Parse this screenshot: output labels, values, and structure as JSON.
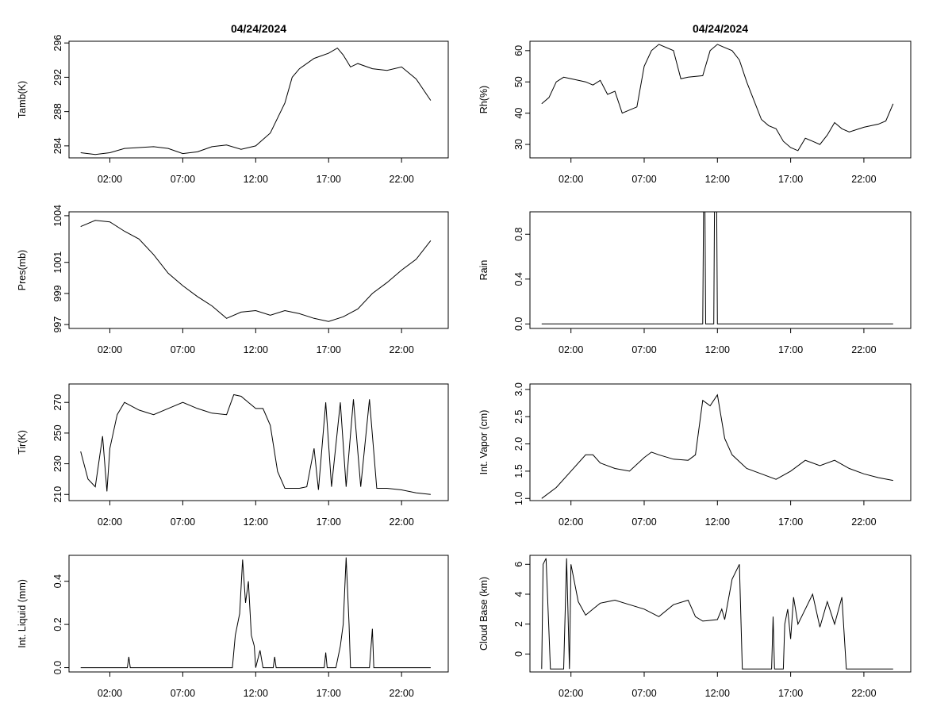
{
  "chart_data": [
    {
      "type": "line",
      "panel": "tamb",
      "title": "04/24/2024",
      "ylabel": "Tamb(K)",
      "ylim": [
        282.6,
        296.2
      ],
      "yticks": [
        "284",
        "288",
        "292",
        "296"
      ],
      "xticks": [
        "02:00",
        "07:00",
        "12:00",
        "17:00",
        "22:00"
      ],
      "xlim": [
        -0.8,
        25.2
      ],
      "points": [
        [
          0.0,
          283.2
        ],
        [
          1.0,
          283.0
        ],
        [
          2.0,
          283.2
        ],
        [
          3.0,
          283.7
        ],
        [
          4.0,
          283.8
        ],
        [
          5.0,
          283.9
        ],
        [
          6.0,
          283.7
        ],
        [
          7.0,
          283.1
        ],
        [
          8.0,
          283.3
        ],
        [
          9.0,
          283.9
        ],
        [
          10.0,
          284.1
        ],
        [
          11.0,
          283.6
        ],
        [
          12.0,
          284.0
        ],
        [
          13.0,
          285.5
        ],
        [
          14.0,
          289.0
        ],
        [
          14.5,
          292.0
        ],
        [
          15.0,
          293.0
        ],
        [
          16.0,
          294.2
        ],
        [
          17.0,
          294.8
        ],
        [
          17.6,
          295.4
        ],
        [
          18.0,
          294.6
        ],
        [
          18.5,
          293.2
        ],
        [
          19.0,
          293.6
        ],
        [
          20.0,
          293.0
        ],
        [
          21.0,
          292.8
        ],
        [
          22.0,
          293.2
        ],
        [
          23.0,
          291.8
        ],
        [
          24.0,
          289.3
        ]
      ]
    },
    {
      "type": "line",
      "panel": "rh",
      "title": "04/24/2024",
      "ylabel": "Rh(%)",
      "ylim": [
        25.7,
        63.0
      ],
      "yticks": [
        "30",
        "40",
        "50",
        "60"
      ],
      "xticks": [
        "02:00",
        "07:00",
        "12:00",
        "17:00",
        "22:00"
      ],
      "xlim": [
        -0.8,
        25.2
      ],
      "points": [
        [
          0.0,
          43.0
        ],
        [
          0.5,
          45.0
        ],
        [
          1.0,
          50.0
        ],
        [
          1.5,
          51.5
        ],
        [
          2.0,
          51.0
        ],
        [
          3.0,
          50.0
        ],
        [
          3.5,
          49.0
        ],
        [
          4.0,
          50.5
        ],
        [
          4.5,
          46.0
        ],
        [
          5.0,
          47.0
        ],
        [
          5.5,
          40.0
        ],
        [
          6.0,
          41.0
        ],
        [
          6.5,
          42.0
        ],
        [
          7.0,
          55.0
        ],
        [
          7.5,
          60.0
        ],
        [
          8.0,
          62.0
        ],
        [
          9.0,
          60.0
        ],
        [
          9.5,
          51.0
        ],
        [
          10.0,
          51.5
        ],
        [
          11.0,
          52.0
        ],
        [
          11.5,
          60.0
        ],
        [
          12.0,
          62.0
        ],
        [
          12.5,
          61.0
        ],
        [
          13.0,
          60.0
        ],
        [
          13.5,
          57.0
        ],
        [
          14.0,
          50.0
        ],
        [
          14.5,
          44.0
        ],
        [
          15.0,
          38.0
        ],
        [
          15.5,
          36.0
        ],
        [
          16.0,
          35.0
        ],
        [
          16.5,
          31.0
        ],
        [
          17.0,
          29.0
        ],
        [
          17.5,
          28.0
        ],
        [
          18.0,
          32.0
        ],
        [
          18.5,
          31.0
        ],
        [
          19.0,
          30.0
        ],
        [
          19.5,
          33.0
        ],
        [
          20.0,
          37.0
        ],
        [
          20.5,
          35.0
        ],
        [
          21.0,
          34.0
        ],
        [
          22.0,
          35.5
        ],
        [
          22.5,
          36.0
        ],
        [
          23.0,
          36.5
        ],
        [
          23.5,
          37.5
        ],
        [
          24.0,
          43.0
        ]
      ]
    },
    {
      "type": "line",
      "panel": "pres",
      "ylabel": "Pres(mb)",
      "ylim": [
        996.75,
        1004.25
      ],
      "yticks": [
        "997",
        "999",
        "1001",
        "1004"
      ],
      "xticks": [
        "02:00",
        "07:00",
        "12:00",
        "17:00",
        "22:00"
      ],
      "xlim": [
        -0.8,
        25.2
      ],
      "points": [
        [
          0.0,
          1003.3
        ],
        [
          1.0,
          1003.7
        ],
        [
          2.0,
          1003.6
        ],
        [
          3.0,
          1003.0
        ],
        [
          4.0,
          1002.5
        ],
        [
          5.0,
          1001.5
        ],
        [
          6.0,
          1000.3
        ],
        [
          7.0,
          999.5
        ],
        [
          8.0,
          998.8
        ],
        [
          9.0,
          998.2
        ],
        [
          10.0,
          997.4
        ],
        [
          11.0,
          997.8
        ],
        [
          12.0,
          997.9
        ],
        [
          13.0,
          997.6
        ],
        [
          14.0,
          997.9
        ],
        [
          15.0,
          997.7
        ],
        [
          16.0,
          997.4
        ],
        [
          17.0,
          997.2
        ],
        [
          18.0,
          997.5
        ],
        [
          19.0,
          998.0
        ],
        [
          20.0,
          999.0
        ],
        [
          21.0,
          999.7
        ],
        [
          22.0,
          1000.5
        ],
        [
          23.0,
          1001.2
        ],
        [
          24.0,
          1002.4
        ]
      ]
    },
    {
      "type": "line",
      "panel": "rain",
      "ylabel": "Rain",
      "ylim": [
        -0.04,
        1.0
      ],
      "yticks": [
        "0.0",
        "0.4",
        "0.8"
      ],
      "xticks": [
        "02:00",
        "07:00",
        "12:00",
        "17:00",
        "22:00"
      ],
      "xlim": [
        -0.8,
        25.2
      ],
      "points": [
        [
          0.0,
          0.0
        ],
        [
          11.0,
          0.0
        ],
        [
          11.05,
          1.0
        ],
        [
          11.15,
          1.0
        ],
        [
          11.2,
          0.0
        ],
        [
          11.75,
          0.0
        ],
        [
          11.8,
          1.0
        ],
        [
          11.95,
          1.0
        ],
        [
          12.0,
          0.0
        ],
        [
          24.0,
          0.0
        ]
      ]
    },
    {
      "type": "line",
      "panel": "tir",
      "ylabel": "Tir(K)",
      "ylim": [
        206.0,
        282.0
      ],
      "yticks": [
        "210",
        "230",
        "250",
        "270"
      ],
      "xticks": [
        "02:00",
        "07:00",
        "12:00",
        "17:00",
        "22:00"
      ],
      "xlim": [
        -0.8,
        25.2
      ],
      "points": [
        [
          0.0,
          238.0
        ],
        [
          0.5,
          220.0
        ],
        [
          1.0,
          215.0
        ],
        [
          1.5,
          248.0
        ],
        [
          1.8,
          212.0
        ],
        [
          2.0,
          240.0
        ],
        [
          2.5,
          262.0
        ],
        [
          3.0,
          270.0
        ],
        [
          4.0,
          265.0
        ],
        [
          5.0,
          262.0
        ],
        [
          6.0,
          266.0
        ],
        [
          7.0,
          270.0
        ],
        [
          8.0,
          266.0
        ],
        [
          9.0,
          263.0
        ],
        [
          10.0,
          262.0
        ],
        [
          10.5,
          275.0
        ],
        [
          11.0,
          274.0
        ],
        [
          11.5,
          270.0
        ],
        [
          12.0,
          266.0
        ],
        [
          12.5,
          266.0
        ],
        [
          13.0,
          255.0
        ],
        [
          13.5,
          225.0
        ],
        [
          14.0,
          214.0
        ],
        [
          15.0,
          214.0
        ],
        [
          15.5,
          215.0
        ],
        [
          16.0,
          240.0
        ],
        [
          16.3,
          213.0
        ],
        [
          16.8,
          270.0
        ],
        [
          17.2,
          215.0
        ],
        [
          17.8,
          270.0
        ],
        [
          18.2,
          215.0
        ],
        [
          18.7,
          272.0
        ],
        [
          19.2,
          215.0
        ],
        [
          19.8,
          272.0
        ],
        [
          20.3,
          214.0
        ],
        [
          21.0,
          214.0
        ],
        [
          22.0,
          213.0
        ],
        [
          23.0,
          211.0
        ],
        [
          24.0,
          210.0
        ]
      ]
    },
    {
      "type": "line",
      "panel": "vapor",
      "ylabel": "Int. Vapor (cm)",
      "ylim": [
        0.96,
        3.1
      ],
      "yticks": [
        "1.0",
        "1.5",
        "2.0",
        "2.5",
        "3.0"
      ],
      "xticks": [
        "02:00",
        "07:00",
        "12:00",
        "17:00",
        "22:00"
      ],
      "xlim": [
        -0.8,
        25.2
      ],
      "points": [
        [
          0.0,
          1.0
        ],
        [
          1.0,
          1.2
        ],
        [
          2.0,
          1.5
        ],
        [
          3.0,
          1.8
        ],
        [
          3.5,
          1.8
        ],
        [
          4.0,
          1.65
        ],
        [
          5.0,
          1.55
        ],
        [
          6.0,
          1.5
        ],
        [
          7.0,
          1.75
        ],
        [
          7.5,
          1.85
        ],
        [
          8.0,
          1.8
        ],
        [
          9.0,
          1.72
        ],
        [
          10.0,
          1.7
        ],
        [
          10.5,
          1.8
        ],
        [
          11.0,
          2.8
        ],
        [
          11.5,
          2.7
        ],
        [
          12.0,
          2.9
        ],
        [
          12.5,
          2.1
        ],
        [
          13.0,
          1.8
        ],
        [
          14.0,
          1.55
        ],
        [
          15.0,
          1.45
        ],
        [
          16.0,
          1.35
        ],
        [
          17.0,
          1.5
        ],
        [
          18.0,
          1.7
        ],
        [
          19.0,
          1.6
        ],
        [
          20.0,
          1.7
        ],
        [
          21.0,
          1.55
        ],
        [
          22.0,
          1.45
        ],
        [
          23.0,
          1.38
        ],
        [
          24.0,
          1.33
        ]
      ]
    },
    {
      "type": "line",
      "panel": "liquid",
      "ylabel": "Int. Liquid (mm)",
      "ylim": [
        -0.02,
        0.52
      ],
      "yticks": [
        "0.0",
        "0.2",
        "0.4"
      ],
      "xticks": [
        "02:00",
        "07:00",
        "12:00",
        "17:00",
        "22:00"
      ],
      "xlim": [
        -0.8,
        25.2
      ],
      "points": [
        [
          0.0,
          0.0
        ],
        [
          3.2,
          0.0
        ],
        [
          3.3,
          0.05
        ],
        [
          3.4,
          0.0
        ],
        [
          10.4,
          0.0
        ],
        [
          10.6,
          0.15
        ],
        [
          10.9,
          0.25
        ],
        [
          11.1,
          0.5
        ],
        [
          11.3,
          0.3
        ],
        [
          11.5,
          0.4
        ],
        [
          11.7,
          0.15
        ],
        [
          11.9,
          0.1
        ],
        [
          12.0,
          0.0
        ],
        [
          12.3,
          0.08
        ],
        [
          12.5,
          0.0
        ],
        [
          13.2,
          0.0
        ],
        [
          13.3,
          0.05
        ],
        [
          13.4,
          0.0
        ],
        [
          16.7,
          0.0
        ],
        [
          16.8,
          0.07
        ],
        [
          16.9,
          0.0
        ],
        [
          17.5,
          0.0
        ],
        [
          17.8,
          0.1
        ],
        [
          18.0,
          0.2
        ],
        [
          18.2,
          0.51
        ],
        [
          18.4,
          0.2
        ],
        [
          18.5,
          0.0
        ],
        [
          19.8,
          0.0
        ],
        [
          20.0,
          0.18
        ],
        [
          20.1,
          0.0
        ],
        [
          24.0,
          0.0
        ]
      ]
    },
    {
      "type": "line",
      "panel": "cloud",
      "ylabel": "Cloud Base (km)",
      "ylim": [
        -1.2,
        6.6
      ],
      "yticks": [
        "0",
        "2",
        "4",
        "6"
      ],
      "xticks": [
        "02:00",
        "07:00",
        "12:00",
        "17:00",
        "22:00"
      ],
      "xlim": [
        -0.8,
        25.2
      ],
      "points": [
        [
          0.0,
          -1.0
        ],
        [
          0.1,
          6.0
        ],
        [
          0.3,
          6.4
        ],
        [
          0.6,
          -1.0
        ],
        [
          1.5,
          -1.0
        ],
        [
          1.7,
          6.4
        ],
        [
          1.9,
          -1.0
        ],
        [
          2.0,
          6.0
        ],
        [
          2.5,
          3.5
        ],
        [
          3.0,
          2.6
        ],
        [
          3.5,
          3.0
        ],
        [
          4.0,
          3.4
        ],
        [
          5.0,
          3.6
        ],
        [
          6.0,
          3.3
        ],
        [
          7.0,
          3.0
        ],
        [
          8.0,
          2.5
        ],
        [
          9.0,
          3.3
        ],
        [
          10.0,
          3.6
        ],
        [
          10.5,
          2.5
        ],
        [
          11.0,
          2.2
        ],
        [
          12.0,
          2.3
        ],
        [
          12.3,
          3.0
        ],
        [
          12.5,
          2.3
        ],
        [
          13.0,
          5.0
        ],
        [
          13.5,
          6.0
        ],
        [
          13.7,
          -1.0
        ],
        [
          15.7,
          -1.0
        ],
        [
          15.8,
          2.5
        ],
        [
          15.9,
          -1.0
        ],
        [
          16.5,
          -1.0
        ],
        [
          16.6,
          2.0
        ],
        [
          16.8,
          3.0
        ],
        [
          17.0,
          1.0
        ],
        [
          17.2,
          3.8
        ],
        [
          17.5,
          2.0
        ],
        [
          18.0,
          3.0
        ],
        [
          18.5,
          4.0
        ],
        [
          19.0,
          1.8
        ],
        [
          19.5,
          3.5
        ],
        [
          20.0,
          2.0
        ],
        [
          20.5,
          3.8
        ],
        [
          20.8,
          -1.0
        ],
        [
          24.0,
          -1.0
        ]
      ]
    }
  ]
}
